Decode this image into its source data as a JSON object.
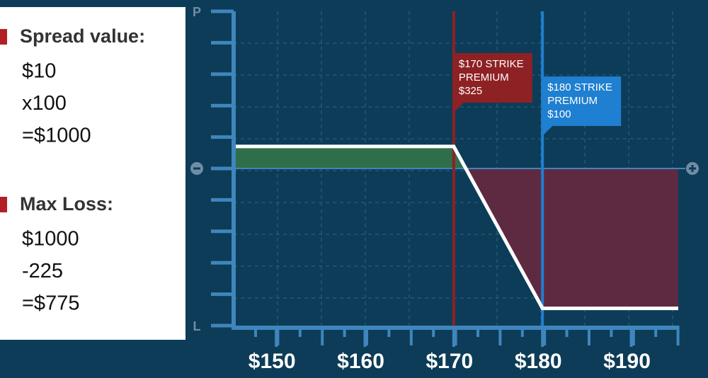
{
  "panel": {
    "sections": [
      {
        "heading": "Spread value:",
        "lines": [
          "$10",
          "x100",
          "=$1000"
        ]
      },
      {
        "heading": "Max Loss:",
        "lines": [
          "$1000",
          "-225",
          "=$775"
        ]
      }
    ]
  },
  "chart_data": {
    "type": "line",
    "x": [
      145.2,
      170,
      180,
      195.3
    ],
    "xlim": [
      145.2,
      195.3
    ],
    "xticks": [
      {
        "value": 150,
        "label": "$150"
      },
      {
        "value": 160,
        "label": "$160"
      },
      {
        "value": 170,
        "label": "$170"
      },
      {
        "value": 180,
        "label": "$180"
      },
      {
        "value": 190,
        "label": "$190"
      }
    ],
    "ylim": [
      -1,
      1
    ],
    "yticks": [
      {
        "value": 1,
        "label": "P"
      },
      {
        "value": -1,
        "label": "L"
      }
    ],
    "series": [
      {
        "color": "#ffffff",
        "values": [
          0.14,
          0.14,
          -0.89,
          -0.89
        ]
      }
    ],
    "profit_color": "#2f6e4a",
    "loss_color": "#5e2a42",
    "annotations": [
      {
        "x": 170,
        "color": "#8e2124",
        "lines": [
          "$170 STRIKE",
          "PREMIUM",
          "$325"
        ]
      },
      {
        "x": 180,
        "color": "#1f7fd0",
        "lines": [
          "$180 STRIKE",
          "PREMIUM",
          "$100"
        ]
      }
    ]
  }
}
